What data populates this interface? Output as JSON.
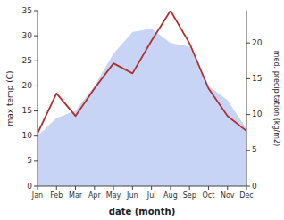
{
  "chart_data": {
    "type": "line",
    "xlabel": "date (month)",
    "ylabel": "max temp (C)",
    "y2label": "med. precipitation (kg/m2)",
    "categories": [
      "Jan",
      "Feb",
      "Mar",
      "Apr",
      "May",
      "Jun",
      "Jul",
      "Aug",
      "Sep",
      "Oct",
      "Nov",
      "Dec"
    ],
    "series": [
      {
        "type": "area",
        "axis": "y2",
        "color": "#c8d4f5",
        "values": [
          7.0,
          9.5,
          10.5,
          14.0,
          18.5,
          21.5,
          22.0,
          20.0,
          19.5,
          14.0,
          12.0,
          8.0
        ]
      },
      {
        "type": "line",
        "color": "#b03030",
        "values": [
          10.5,
          18.5,
          14.0,
          19.5,
          24.5,
          22.5,
          29.0,
          35.0,
          28.5,
          19.5,
          14.0,
          11.0
        ]
      }
    ],
    "ylim": [
      0,
      35
    ],
    "yticks": [
      0,
      5,
      10,
      15,
      20,
      25,
      30,
      35
    ],
    "y2lim": [
      0,
      24.5
    ],
    "y2ticks": [
      0,
      5,
      10,
      15,
      20
    ]
  }
}
